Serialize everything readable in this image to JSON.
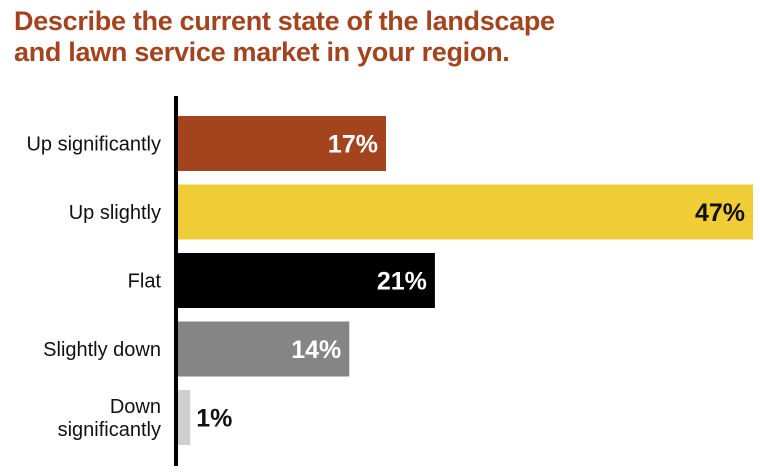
{
  "title": {
    "line1": "Describe the current state of the landscape",
    "line2": "and lawn service market in your region."
  },
  "colors": {
    "title": "#a3441f",
    "axis": "#000000"
  },
  "chart_data": {
    "type": "bar",
    "orientation": "horizontal",
    "title": "Describe the current state of the landscape and lawn service market in your region.",
    "categories": [
      [
        "Up significantly"
      ],
      [
        "Up slightly"
      ],
      [
        "Flat"
      ],
      [
        "Slightly down"
      ],
      [
        "Down",
        "significantly"
      ]
    ],
    "values": [
      17,
      47,
      21,
      14,
      1
    ],
    "value_labels": [
      "17%",
      "47%",
      "21%",
      "14%",
      "1%"
    ],
    "bar_colors": [
      "#a3441f",
      "#efcd37",
      "#000000",
      "#858585",
      "#cfcfcf"
    ],
    "label_colors": [
      "#ffffff",
      "#111111",
      "#ffffff",
      "#ffffff",
      "#111111"
    ],
    "label_position": [
      "inside",
      "inside",
      "inside",
      "inside",
      "outside"
    ],
    "xlim": [
      0,
      47
    ],
    "unit": "%",
    "grid": false,
    "legend": "none"
  }
}
